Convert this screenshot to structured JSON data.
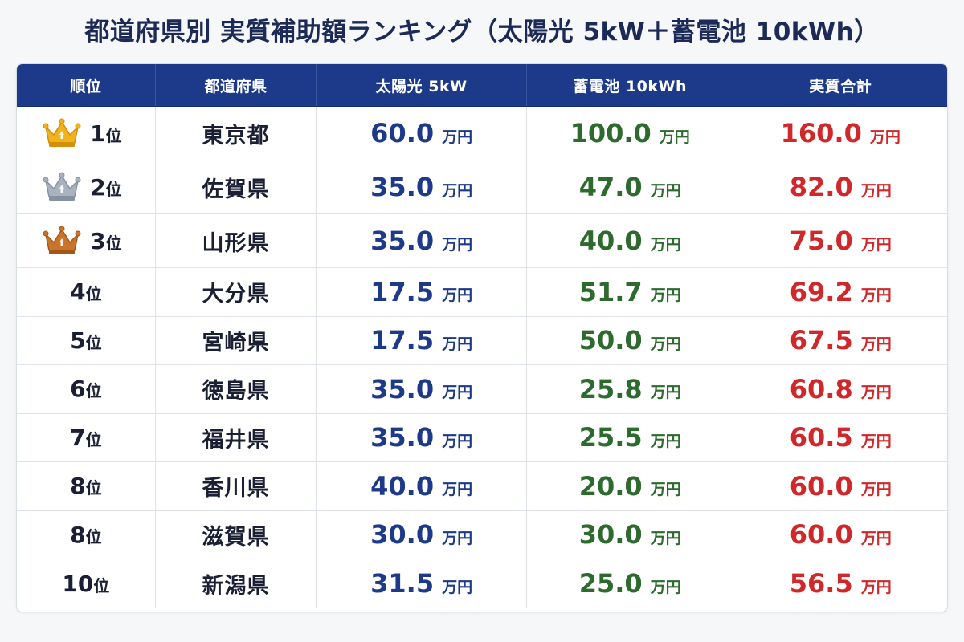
{
  "title": "都道府県別 実質補助額ランキング（太陽光 5kW＋蓄電池 10kWh）",
  "colors": {
    "header_bg": "#1d3a8a",
    "solar": "#1d3a8a",
    "battery": "#2d6a2d",
    "total": "#d0282a",
    "gold": "#f2b21c",
    "silver": "#a9b3c0",
    "bronze": "#c9742a"
  },
  "headers": {
    "rank": "順位",
    "prefecture": "都道府県",
    "solar": "太陽光 5kW",
    "battery": "蓄電池 10kWh",
    "total": "実質合計"
  },
  "unit": "万円",
  "rank_suffix": "位",
  "rows": [
    {
      "rank": "1",
      "crown": "gold-crown-icon",
      "prefecture": "東京都",
      "solar": "60.0",
      "battery": "100.0",
      "total": "160.0"
    },
    {
      "rank": "2",
      "crown": "silver-crown-icon",
      "prefecture": "佐賀県",
      "solar": "35.0",
      "battery": "47.0",
      "total": "82.0"
    },
    {
      "rank": "3",
      "crown": "bronze-crown-icon",
      "prefecture": "山形県",
      "solar": "35.0",
      "battery": "40.0",
      "total": "75.0"
    },
    {
      "rank": "4",
      "crown": "",
      "prefecture": "大分県",
      "solar": "17.5",
      "battery": "51.7",
      "total": "69.2"
    },
    {
      "rank": "5",
      "crown": "",
      "prefecture": "宮崎県",
      "solar": "17.5",
      "battery": "50.0",
      "total": "67.5"
    },
    {
      "rank": "6",
      "crown": "",
      "prefecture": "徳島県",
      "solar": "35.0",
      "battery": "25.8",
      "total": "60.8"
    },
    {
      "rank": "7",
      "crown": "",
      "prefecture": "福井県",
      "solar": "35.0",
      "battery": "25.5",
      "total": "60.5"
    },
    {
      "rank": "8",
      "crown": "",
      "prefecture": "香川県",
      "solar": "40.0",
      "battery": "20.0",
      "total": "60.0"
    },
    {
      "rank": "8",
      "crown": "",
      "prefecture": "滋賀県",
      "solar": "30.0",
      "battery": "30.0",
      "total": "60.0"
    },
    {
      "rank": "10",
      "crown": "",
      "prefecture": "新潟県",
      "solar": "31.5",
      "battery": "25.0",
      "total": "56.5"
    }
  ]
}
